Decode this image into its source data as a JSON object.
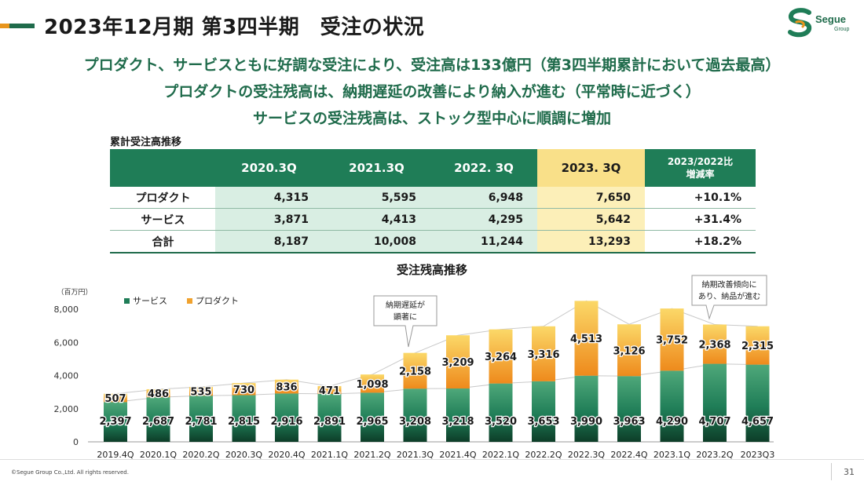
{
  "header": {
    "title": "2023年12月期 第3四半期　受注の状況",
    "logo_text": "Segue",
    "logo_sub": "Group"
  },
  "headlines": [
    "プロダクト、サービスともに好調な受注により、受注高は133億円（第3四半期累計において過去最高）",
    "プロダクトの受注残高は、納期遅延の改善により納入が進む（平常時に近づく）",
    "サービスの受注残高は、ストック型中心に順調に増加"
  ],
  "table": {
    "section_label": "累計受注高推移",
    "columns": [
      "2020.3Q",
      "2021.3Q",
      "2022. 3Q",
      "2023. 3Q"
    ],
    "rate_header_line1": "2023/2022比",
    "rate_header_line2": "増減率",
    "rows": [
      {
        "label": "プロダクト",
        "values": [
          "4,315",
          "5,595",
          "6,948",
          "7,650"
        ],
        "rate": "+10.1%"
      },
      {
        "label": "サービス",
        "values": [
          "3,871",
          "4,413",
          "4,295",
          "5,642"
        ],
        "rate": "+31.4%"
      },
      {
        "label": "合計",
        "values": [
          "8,187",
          "10,008",
          "11,244",
          "13,293"
        ],
        "rate": "+18.2%"
      }
    ]
  },
  "chart_data": {
    "type": "bar",
    "stacked": true,
    "title": "受注残高推移",
    "unit_label": "（百万円）",
    "categories": [
      "2019.4Q",
      "2020.1Q",
      "2020.2Q",
      "2020.3Q",
      "2020.4Q",
      "2021.1Q",
      "2021.2Q",
      "2021.3Q",
      "2021.4Q",
      "2022.1Q",
      "2022.2Q",
      "2022.3Q",
      "2022.4Q",
      "2023.1Q",
      "2023.2Q",
      "2023Q3"
    ],
    "series": [
      {
        "name": "サービス",
        "color": "#1f7d57",
        "values": [
          2397,
          2687,
          2781,
          2815,
          2916,
          2891,
          2965,
          3208,
          3218,
          3520,
          3653,
          3990,
          3963,
          4290,
          4707,
          4657
        ]
      },
      {
        "name": "プロダクト",
        "color": "#f0a22e",
        "values": [
          507,
          486,
          535,
          730,
          836,
          471,
          1098,
          2158,
          3209,
          3264,
          3316,
          4513,
          3126,
          3752,
          2368,
          2315
        ]
      }
    ],
    "ylim": [
      0,
      8000
    ],
    "yticks": [
      "0",
      "2,000",
      "4,000",
      "6,000",
      "8,000"
    ],
    "legend": "top-left",
    "annotations": [
      {
        "text": [
          "納期遅延が",
          "顕著に"
        ]
      },
      {
        "text": [
          "納期改善傾向に",
          "あり、納品が進む"
        ]
      }
    ]
  },
  "footer": {
    "copyright": "©Segue Group Co.,Ltd. All rights reserved.",
    "page": "31"
  }
}
